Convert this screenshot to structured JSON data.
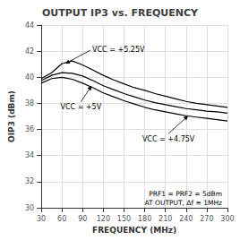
{
  "chart_data": {
    "type": "line",
    "title": "OUTPUT IP3 vs. FREQUENCY",
    "xlabel": "FREQUENCY (MHz)",
    "ylabel": "OIP3 (dBm)",
    "x": [
      30,
      45,
      60,
      75,
      90,
      105,
      120,
      135,
      150,
      165,
      180,
      195,
      210,
      225,
      240,
      255,
      270,
      285,
      300
    ],
    "series": [
      {
        "color": "#000000",
        "values": [
          39.9,
          40.35,
          41.05,
          41.25,
          40.95,
          40.55,
          40.15,
          39.8,
          39.5,
          39.2,
          39.0,
          38.75,
          38.55,
          38.35,
          38.15,
          38.0,
          37.9,
          37.8,
          37.7
        ]
      },
      {
        "color": "#000000",
        "values": [
          39.75,
          40.15,
          40.35,
          40.3,
          40.1,
          39.75,
          39.35,
          39.05,
          38.75,
          38.5,
          38.25,
          38.05,
          37.9,
          37.75,
          37.6,
          37.5,
          37.4,
          37.35,
          37.25
        ]
      },
      {
        "color": "#000000",
        "values": [
          39.55,
          39.9,
          40.0,
          39.85,
          39.55,
          39.2,
          38.8,
          38.5,
          38.2,
          37.95,
          37.7,
          37.5,
          37.35,
          37.2,
          37.05,
          36.95,
          36.85,
          36.75,
          36.65
        ]
      }
    ],
    "xlim": [
      30,
      300
    ],
    "ylim": [
      30,
      44
    ],
    "xticks": [
      30,
      60,
      90,
      120,
      150,
      180,
      210,
      240,
      270,
      300
    ],
    "yticks": [
      30,
      32,
      34,
      36,
      38,
      40,
      42,
      44
    ],
    "grid": true,
    "annotations": [
      {
        "text": "VCC = +5.25V",
        "x": 65,
        "y": 41.05
      },
      {
        "text": "VCC = +5V",
        "x": 103,
        "y": 39.35
      },
      {
        "text": "VCC = +4.75V",
        "x": 243,
        "y": 37.05
      }
    ],
    "notes": [
      "PRF1 = PRF2 = 5dBm",
      "AT OUTPUT, Δf ≡ 1MHz"
    ]
  }
}
